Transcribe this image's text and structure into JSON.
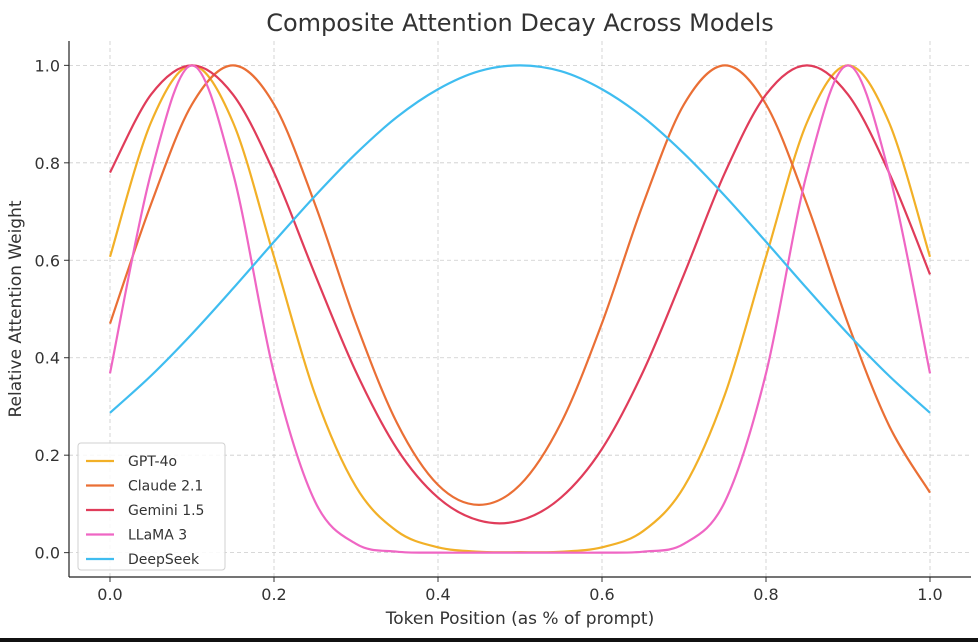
{
  "chart_data": {
    "type": "line",
    "title": "Composite Attention Decay Across Models",
    "xlabel": "Token Position (as % of prompt)",
    "ylabel": "Relative Attention Weight",
    "xlim": [
      -0.05,
      1.05
    ],
    "ylim": [
      -0.05,
      1.05
    ],
    "xticks": [
      "0.0",
      "0.2",
      "0.4",
      "0.6",
      "0.8",
      "1.0"
    ],
    "yticks": [
      "0.0",
      "0.2",
      "0.4",
      "0.6",
      "0.8",
      "1.0"
    ],
    "grid": true,
    "legend_position": "bottom-left",
    "x": [
      0,
      0.05,
      0.1,
      0.15,
      0.2,
      0.25,
      0.3,
      0.35,
      0.4,
      0.45,
      0.5,
      0.55,
      0.6,
      0.65,
      0.7,
      0.75,
      0.8,
      0.85,
      0.9,
      0.95,
      1.0
    ],
    "series": [
      {
        "name": "GPT-4o",
        "color": "#f2b027",
        "values": [
          0.607,
          0.883,
          1.0,
          0.883,
          0.607,
          0.325,
          0.135,
          0.044,
          0.011,
          0.002,
          0.001,
          0.002,
          0.011,
          0.044,
          0.135,
          0.325,
          0.607,
          0.883,
          1.0,
          0.883,
          0.607
        ]
      },
      {
        "name": "Claude 2.1",
        "color": "#ea6f35",
        "values": [
          0.47,
          0.715,
          0.92,
          1.0,
          0.92,
          0.715,
          0.471,
          0.266,
          0.139,
          0.098,
          0.139,
          0.266,
          0.471,
          0.715,
          0.92,
          1.0,
          0.92,
          0.715,
          0.47,
          0.261,
          0.123
        ]
      },
      {
        "name": "Gemini 1.5",
        "color": "#e03c5a",
        "values": [
          0.78,
          0.94,
          1.0,
          0.94,
          0.78,
          0.571,
          0.371,
          0.213,
          0.113,
          0.066,
          0.066,
          0.113,
          0.213,
          0.371,
          0.571,
          0.78,
          0.94,
          1.0,
          0.94,
          0.78,
          0.571
        ]
      },
      {
        "name": "LLaMA 3",
        "color": "#ef66c4",
        "values": [
          0.368,
          0.779,
          1.0,
          0.779,
          0.368,
          0.105,
          0.018,
          0.002,
          0.0,
          0.0,
          0.0,
          0.0,
          0.0,
          0.002,
          0.018,
          0.105,
          0.368,
          0.779,
          1.0,
          0.779,
          0.368
        ]
      },
      {
        "name": "DeepSeek",
        "color": "#3fbdf0",
        "values": [
          0.287,
          0.363,
          0.449,
          0.542,
          0.638,
          0.732,
          0.819,
          0.894,
          0.951,
          0.988,
          1.0,
          0.988,
          0.951,
          0.894,
          0.819,
          0.732,
          0.638,
          0.542,
          0.449,
          0.363,
          0.287
        ]
      }
    ]
  }
}
